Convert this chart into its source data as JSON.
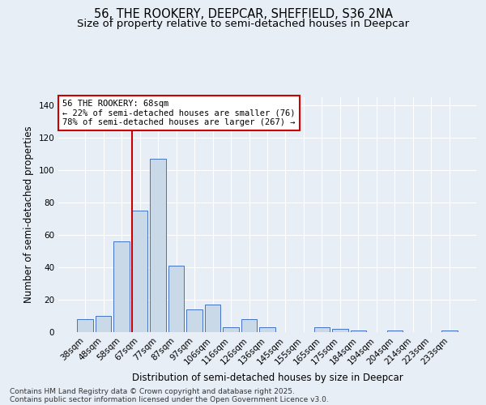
{
  "title1": "56, THE ROOKERY, DEEPCAR, SHEFFIELD, S36 2NA",
  "title2": "Size of property relative to semi-detached houses in Deepcar",
  "xlabel": "Distribution of semi-detached houses by size in Deepcar",
  "ylabel": "Number of semi-detached properties",
  "categories": [
    "38sqm",
    "48sqm",
    "58sqm",
    "67sqm",
    "77sqm",
    "87sqm",
    "97sqm",
    "106sqm",
    "116sqm",
    "126sqm",
    "136sqm",
    "145sqm",
    "155sqm",
    "165sqm",
    "175sqm",
    "184sqm",
    "194sqm",
    "204sqm",
    "214sqm",
    "223sqm",
    "233sqm"
  ],
  "values": [
    8,
    10,
    56,
    75,
    107,
    41,
    14,
    17,
    3,
    8,
    3,
    0,
    0,
    3,
    2,
    1,
    0,
    1,
    0,
    0,
    1
  ],
  "bar_color": "#c9d9e8",
  "bar_edge_color": "#4472c4",
  "annotation_text": "56 THE ROOKERY: 68sqm\n← 22% of semi-detached houses are smaller (76)\n78% of semi-detached houses are larger (267) →",
  "annotation_box_color": "#ffffff",
  "annotation_box_edge_color": "#cc0000",
  "line_color": "#cc0000",
  "ylim": [
    0,
    145
  ],
  "yticks": [
    0,
    20,
    40,
    60,
    80,
    100,
    120,
    140
  ],
  "background_color": "#e8eef5",
  "footer_line1": "Contains HM Land Registry data © Crown copyright and database right 2025.",
  "footer_line2": "Contains public sector information licensed under the Open Government Licence v3.0.",
  "title1_fontsize": 10.5,
  "title2_fontsize": 9.5,
  "axis_label_fontsize": 8.5,
  "tick_fontsize": 7.5,
  "annotation_fontsize": 7.5,
  "footer_fontsize": 6.5
}
